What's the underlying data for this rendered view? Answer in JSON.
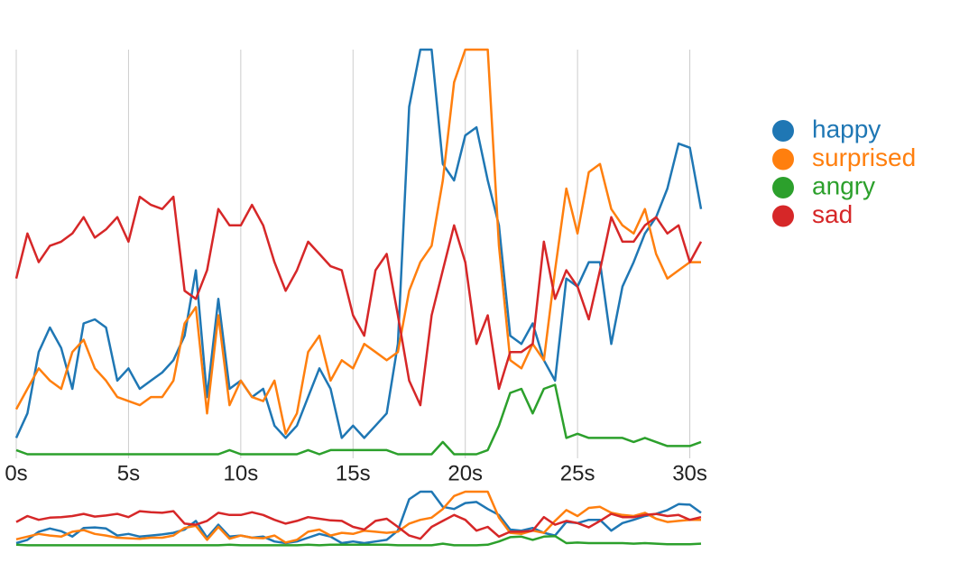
{
  "chart_data": {
    "type": "line",
    "x": [
      0,
      0.5,
      1,
      1.5,
      2,
      2.5,
      3,
      3.5,
      4,
      4.5,
      5,
      5.5,
      6,
      6.5,
      7,
      7.5,
      8,
      8.5,
      9,
      9.5,
      10,
      10.5,
      11,
      11.5,
      12,
      12.5,
      13,
      13.5,
      14,
      14.5,
      15,
      15.5,
      16,
      16.5,
      17,
      17.5,
      18,
      18.5,
      19,
      19.5,
      20,
      20.5,
      21,
      21.5,
      22,
      22.5,
      23,
      23.5,
      24,
      24.5,
      25,
      25.5,
      26,
      26.5,
      27,
      27.5,
      28,
      28.5,
      29,
      29.5,
      30,
      30.5
    ],
    "series": [
      {
        "name": "happy",
        "color": "#1f77b4",
        "values": [
          0.05,
          0.11,
          0.26,
          0.32,
          0.27,
          0.17,
          0.33,
          0.34,
          0.32,
          0.19,
          0.22,
          0.17,
          0.19,
          0.21,
          0.24,
          0.3,
          0.46,
          0.15,
          0.39,
          0.17,
          0.19,
          0.15,
          0.17,
          0.08,
          0.05,
          0.08,
          0.15,
          0.22,
          0.17,
          0.05,
          0.08,
          0.05,
          0.08,
          0.11,
          0.28,
          0.86,
          1,
          1,
          0.72,
          0.68,
          0.79,
          0.81,
          0.68,
          0.57,
          0.3,
          0.28,
          0.33,
          0.24,
          0.19,
          0.44,
          0.42,
          0.48,
          0.48,
          0.28,
          0.42,
          0.48,
          0.55,
          0.59,
          0.66,
          0.77,
          0.76,
          0.61
        ]
      },
      {
        "name": "surprised",
        "color": "#ff7f0e",
        "values": [
          0.12,
          0.17,
          0.22,
          0.19,
          0.17,
          0.26,
          0.29,
          0.22,
          0.19,
          0.15,
          0.14,
          0.13,
          0.15,
          0.15,
          0.19,
          0.33,
          0.37,
          0.11,
          0.35,
          0.13,
          0.19,
          0.15,
          0.14,
          0.19,
          0.06,
          0.11,
          0.26,
          0.3,
          0.19,
          0.24,
          0.22,
          0.28,
          0.26,
          0.24,
          0.26,
          0.41,
          0.48,
          0.52,
          0.68,
          0.92,
          1,
          1,
          1,
          0.52,
          0.24,
          0.22,
          0.28,
          0.24,
          0.46,
          0.66,
          0.55,
          0.7,
          0.72,
          0.61,
          0.57,
          0.55,
          0.61,
          0.5,
          0.44,
          0.46,
          0.48,
          0.48
        ]
      },
      {
        "name": "angry",
        "color": "#2ca02c",
        "values": [
          0.02,
          0.01,
          0.01,
          0.01,
          0.01,
          0.01,
          0.01,
          0.01,
          0.01,
          0.01,
          0.01,
          0.01,
          0.01,
          0.01,
          0.01,
          0.01,
          0.01,
          0.01,
          0.01,
          0.02,
          0.01,
          0.01,
          0.01,
          0.01,
          0.01,
          0.01,
          0.02,
          0.01,
          0.02,
          0.02,
          0.02,
          0.02,
          0.02,
          0.02,
          0.01,
          0.01,
          0.01,
          0.01,
          0.04,
          0.01,
          0.01,
          0.01,
          0.02,
          0.08,
          0.16,
          0.17,
          0.11,
          0.17,
          0.18,
          0.05,
          0.06,
          0.05,
          0.05,
          0.05,
          0.05,
          0.04,
          0.05,
          0.04,
          0.03,
          0.03,
          0.03,
          0.04
        ]
      },
      {
        "name": "sad",
        "color": "#d62728",
        "values": [
          0.44,
          0.55,
          0.48,
          0.52,
          0.53,
          0.55,
          0.59,
          0.54,
          0.56,
          0.59,
          0.53,
          0.64,
          0.62,
          0.61,
          0.64,
          0.41,
          0.39,
          0.46,
          0.61,
          0.57,
          0.57,
          0.62,
          0.57,
          0.48,
          0.41,
          0.46,
          0.53,
          0.5,
          0.47,
          0.46,
          0.35,
          0.3,
          0.46,
          0.5,
          0.35,
          0.19,
          0.13,
          0.35,
          0.46,
          0.57,
          0.48,
          0.28,
          0.35,
          0.17,
          0.26,
          0.26,
          0.28,
          0.53,
          0.39,
          0.46,
          0.42,
          0.34,
          0.46,
          0.59,
          0.53,
          0.53,
          0.57,
          0.59,
          0.55,
          0.57,
          0.48,
          0.53
        ]
      }
    ],
    "xlim": [
      0,
      30.5
    ],
    "xticks": [
      {
        "value": 0,
        "label": "0s"
      },
      {
        "value": 5,
        "label": "5s"
      },
      {
        "value": 10,
        "label": "10s"
      },
      {
        "value": 15,
        "label": "15s"
      },
      {
        "value": 20,
        "label": "20s"
      },
      {
        "value": 25,
        "label": "25s"
      },
      {
        "value": 30,
        "label": "30s"
      }
    ],
    "ylim": [
      0,
      1
    ],
    "grid": true,
    "legend": "right"
  }
}
